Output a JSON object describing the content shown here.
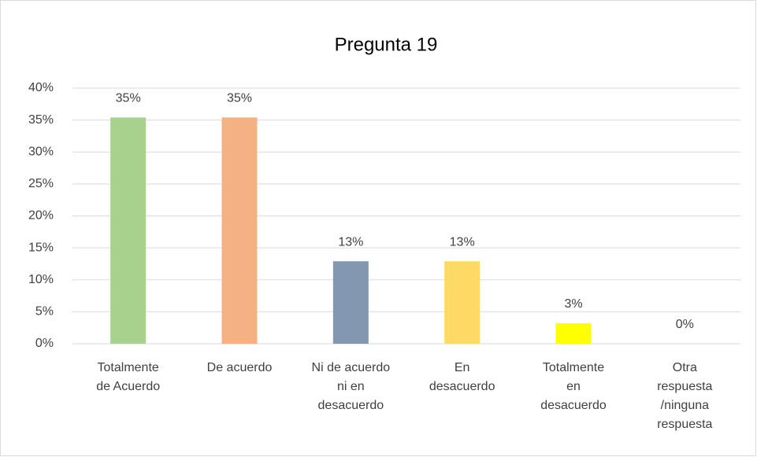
{
  "chart_data": {
    "type": "bar",
    "title": "Pregunta 19",
    "categories": [
      [
        "Totalmente",
        "de Acuerdo"
      ],
      [
        "De acuerdo"
      ],
      [
        "Ni de acuerdo",
        "ni en",
        "desacuerdo"
      ],
      [
        "En",
        "desacuerdo"
      ],
      [
        "Totalmente",
        "en",
        "desacuerdo"
      ],
      [
        "Otra",
        "respuesta",
        "/ninguna",
        "respuesta"
      ]
    ],
    "values": [
      35.4,
      35.4,
      12.9,
      12.9,
      3.2,
      0
    ],
    "value_labels": [
      "35%",
      "35%",
      "13%",
      "13%",
      "3%",
      "0%"
    ],
    "colors": [
      "#a9d18e",
      "#f4b183",
      "#8497b0",
      "#ffd966",
      "#ffff00",
      "#bfbfbf"
    ],
    "ylim": [
      0,
      40
    ],
    "yticks": [
      {
        "value": 0,
        "label": "0%"
      },
      {
        "value": 5,
        "label": "5%"
      },
      {
        "value": 10,
        "label": "10%"
      },
      {
        "value": 15,
        "label": "15%"
      },
      {
        "value": 20,
        "label": "20%"
      },
      {
        "value": 25,
        "label": "25%"
      },
      {
        "value": 30,
        "label": "30%"
      },
      {
        "value": 35,
        "label": "35%"
      },
      {
        "value": 40,
        "label": "40%"
      }
    ],
    "grid": true
  }
}
